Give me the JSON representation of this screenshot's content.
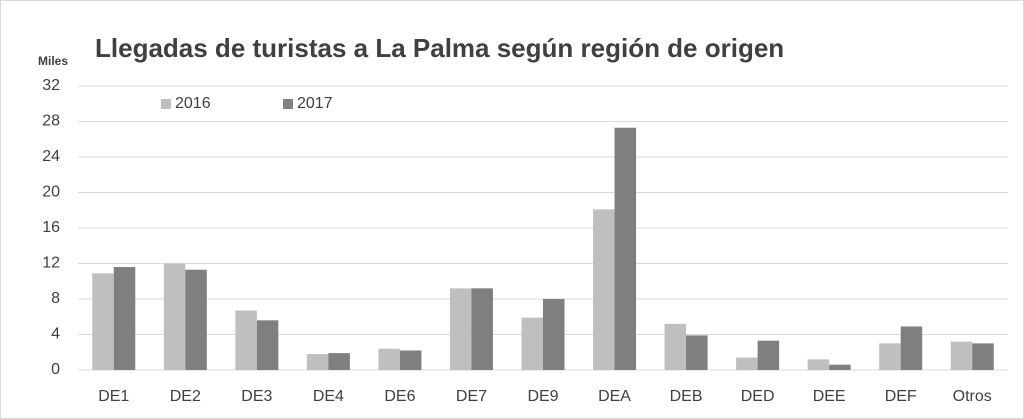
{
  "chart_data": {
    "type": "bar",
    "title": "Llegadas de turistas a La Palma según región de origen",
    "y_label": "Miles",
    "categories": [
      "DE1",
      "DE2",
      "DE3",
      "DE4",
      "DE6",
      "DE7",
      "DE9",
      "DEA",
      "DEB",
      "DED",
      "DEE",
      "DEF",
      "Otros"
    ],
    "series": [
      {
        "name": "2016",
        "color": "#bfbfbf",
        "values": [
          10.9,
          12.0,
          6.7,
          1.8,
          2.4,
          9.2,
          5.9,
          18.1,
          5.2,
          1.4,
          1.2,
          3.0,
          3.2
        ]
      },
      {
        "name": "2017",
        "color": "#7f7f7f",
        "values": [
          11.6,
          11.3,
          5.6,
          1.9,
          2.2,
          9.2,
          8.0,
          27.3,
          3.9,
          3.3,
          0.6,
          4.9,
          3.0
        ]
      }
    ],
    "ylim": [
      0,
      32
    ],
    "yticks": [
      0,
      4,
      8,
      12,
      16,
      20,
      24,
      28,
      32
    ],
    "grid": true,
    "legend": "top-left"
  }
}
